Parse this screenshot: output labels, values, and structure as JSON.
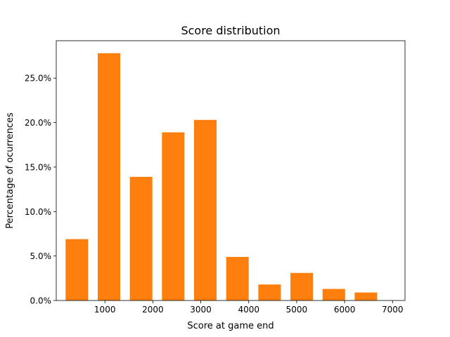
{
  "chart_data": {
    "type": "bar",
    "title": "Score distribution",
    "xlabel": "Score at game end",
    "ylabel": "Percentage of ocurrences",
    "xlim": [
      -15,
      7260
    ],
    "ylim": [
      0,
      29.2
    ],
    "x_ticks": [
      1000,
      2000,
      3000,
      4000,
      5000,
      6000,
      7000
    ],
    "x_tick_labels": [
      "1000",
      "2000",
      "3000",
      "4000",
      "5000",
      "6000",
      "7000"
    ],
    "y_ticks": [
      0,
      5,
      10,
      15,
      20,
      25
    ],
    "y_tick_labels": [
      "0.0%",
      "5.0%",
      "10.0%",
      "15.0%",
      "20.0%",
      "25.0%"
    ],
    "bar_width": 470,
    "color": "#ff7f0e",
    "grid": false,
    "legend": "none",
    "x": [
      415,
      1085,
      1755,
      2425,
      3095,
      3765,
      4435,
      5105,
      5775,
      6445
    ],
    "values": [
      6.9,
      27.8,
      13.9,
      18.9,
      20.3,
      4.9,
      1.8,
      3.1,
      1.3,
      0.9
    ]
  }
}
